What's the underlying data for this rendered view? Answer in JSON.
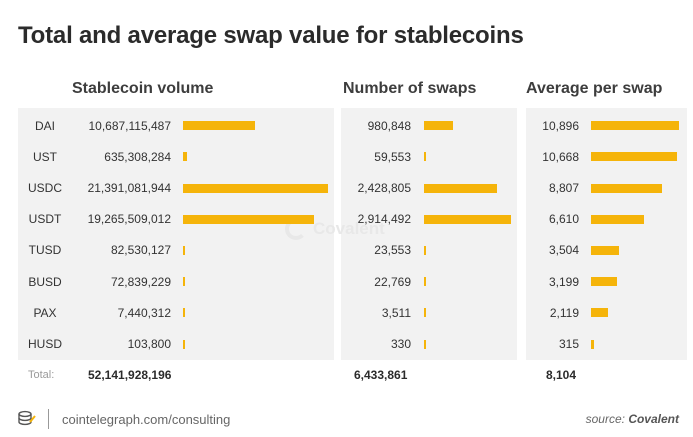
{
  "title": "Total and average swap value for stablecoins",
  "bar_color": "#f5b40a",
  "columns": {
    "volume": "Stablecoin volume",
    "swaps": "Number of swaps",
    "average": "Average per swap"
  },
  "chart_data": {
    "type": "bar",
    "categories": [
      "DAI",
      "UST",
      "USDC",
      "USDT",
      "TUSD",
      "BUSD",
      "PAX",
      "HUSD"
    ],
    "series": [
      {
        "name": "Stablecoin volume",
        "values": [
          10687115487,
          635308284,
          21391081944,
          19265509012,
          82530127,
          72839229,
          7440312,
          103800
        ],
        "labels": [
          "10,687,115,487",
          "635,308,284",
          "21,391,081,944",
          "19,265,509,012",
          "82,530,127",
          "72,839,229",
          "7,440,312",
          "103,800"
        ]
      },
      {
        "name": "Number of swaps",
        "values": [
          980848,
          59553,
          2428805,
          2914492,
          23553,
          22769,
          3511,
          330
        ],
        "labels": [
          "980,848",
          "59,553",
          "2,428,805",
          "2,914,492",
          "23,553",
          "22,769",
          "3,511",
          "330"
        ]
      },
      {
        "name": "Average per swap",
        "values": [
          10896,
          10668,
          8807,
          6610,
          3504,
          3199,
          2119,
          315
        ],
        "labels": [
          "10,896",
          "10,668",
          "8,807",
          "6,610",
          "3,504",
          "3,199",
          "2,119",
          "315"
        ]
      }
    ],
    "totals": {
      "label": "Total:",
      "volume": "52,141,928,196",
      "swaps": "6,433,861",
      "average": "8,104"
    }
  },
  "watermark": "Covalent",
  "footer": {
    "link": "cointelegraph.com/consulting",
    "source_prefix": "source:",
    "source_name": "Covalent"
  }
}
